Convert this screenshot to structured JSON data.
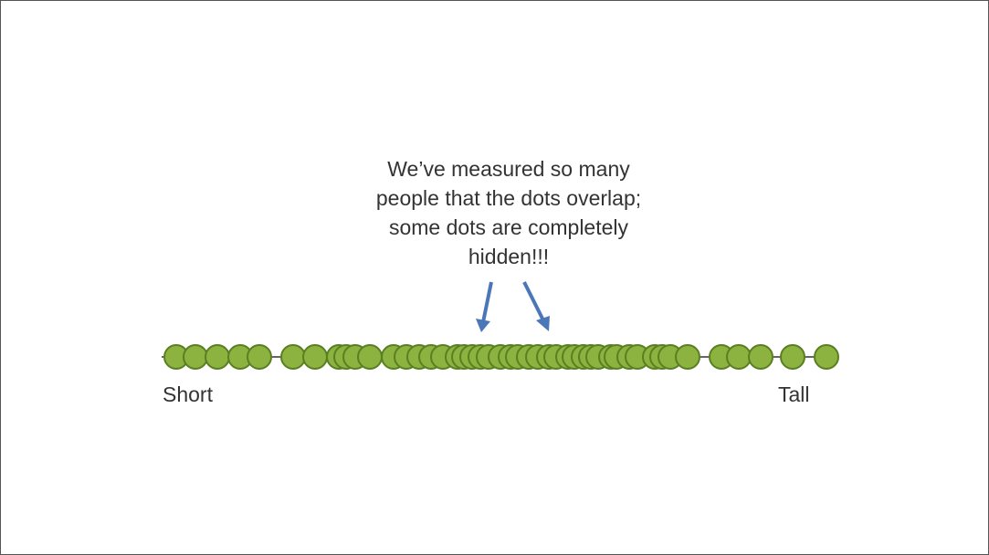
{
  "callout": {
    "lines": [
      "We’ve measured so many",
      "people that the dots overlap;",
      "some dots are completely",
      "hidden!!!"
    ]
  },
  "axis": {
    "left_label": "Short",
    "right_label": "Tall"
  },
  "colors": {
    "dot_fill": "#8cb33f",
    "dot_stroke": "#5a7f22",
    "arrow": "#4b77b8",
    "line": "#333333",
    "text": "#333333"
  },
  "dot_positions": [
    0.0,
    2.1,
    4.5,
    7.0,
    9.1,
    12.8,
    15.2,
    17.8,
    18.6,
    19.6,
    21.2,
    23.8,
    25.2,
    26.6,
    27.9,
    29.2,
    30.8,
    31.5,
    32.4,
    33.3,
    34.2,
    35.5,
    36.6,
    37.4,
    38.6,
    39.6,
    40.8,
    41.6,
    42.9,
    43.6,
    44.6,
    45.4,
    46.2,
    47.6,
    48.2,
    49.6,
    50.5,
    52.4,
    53.2,
    54.1,
    56.0,
    59.7,
    61.6,
    64.0,
    67.5,
    71.2
  ]
}
